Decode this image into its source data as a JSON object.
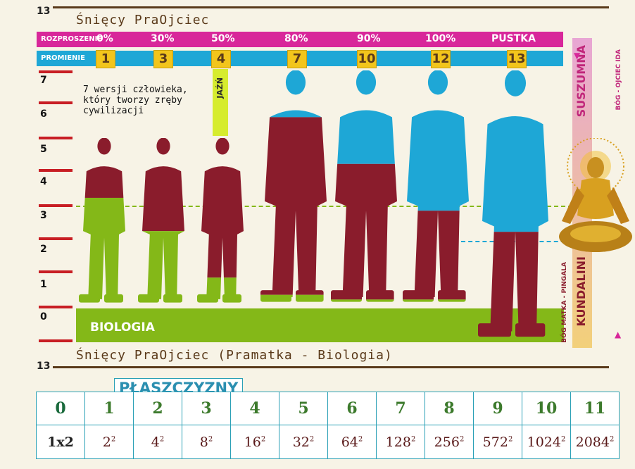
{
  "top_number": "13",
  "bottom_number": "13",
  "top_title": "Śnięcy PraOjciec",
  "bottom_title": "Śnięcy PraOjciec (Pramatka - Biologia)",
  "rozproszenie": {
    "label": "ROZPROSZENIE",
    "values": [
      "0%",
      "30%",
      "50%",
      "80%",
      "90%",
      "100%",
      "PUSTKA"
    ]
  },
  "promienie": {
    "label": "PROMIENIE",
    "values": [
      "1",
      "3",
      "4",
      "7",
      "10",
      "12",
      "13"
    ]
  },
  "y_axis": [
    "7",
    "6",
    "5",
    "4",
    "3",
    "2",
    "1",
    "0"
  ],
  "annotation": "7 wersji człowieka, który tworzy zręby cywilizacji",
  "jazn": "JAŹŃ",
  "biologia": "BIOLOGIA",
  "sidebar": {
    "top": "SUSZUMNA",
    "top_small": "BÓG - OJCIEC IDA",
    "bottom": "KUNDALINI",
    "bottom_small": "BÓG MATKA - PINGALA"
  },
  "figures": [
    {
      "blue_fraction": 0.0,
      "red_fraction": 0.36
    },
    {
      "blue_fraction": 0.0,
      "red_fraction": 0.56
    },
    {
      "blue_fraction": 0.0,
      "red_fraction": 0.84
    },
    {
      "blue_fraction": 0.2,
      "red_fraction": 0.76
    },
    {
      "blue_fraction": 0.4,
      "red_fraction": 0.58
    },
    {
      "blue_fraction": 0.6,
      "red_fraction": 0.38
    },
    {
      "blue_fraction": 0.6,
      "red_fraction": 0.4
    }
  ],
  "colors": {
    "blue": "#1ea7d6",
    "red": "#8a1c2c",
    "green": "#84b818",
    "magenta": "#d8279a"
  },
  "planes_title": "PŁASZCZYZNY",
  "planes": {
    "numbers": [
      "0",
      "1",
      "2",
      "3",
      "4",
      "5",
      "6",
      "7",
      "8",
      "9",
      "10",
      "11"
    ],
    "values": [
      {
        "base": "1x2",
        "exp": ""
      },
      {
        "base": "2",
        "exp": "2"
      },
      {
        "base": "4",
        "exp": "2"
      },
      {
        "base": "8",
        "exp": "2"
      },
      {
        "base": "16",
        "exp": "2"
      },
      {
        "base": "32",
        "exp": "2"
      },
      {
        "base": "64",
        "exp": "2"
      },
      {
        "base": "128",
        "exp": "2"
      },
      {
        "base": "256",
        "exp": "2"
      },
      {
        "base": "572",
        "exp": "2"
      },
      {
        "base": "1024",
        "exp": "2"
      },
      {
        "base": "2084",
        "exp": "2"
      }
    ]
  }
}
